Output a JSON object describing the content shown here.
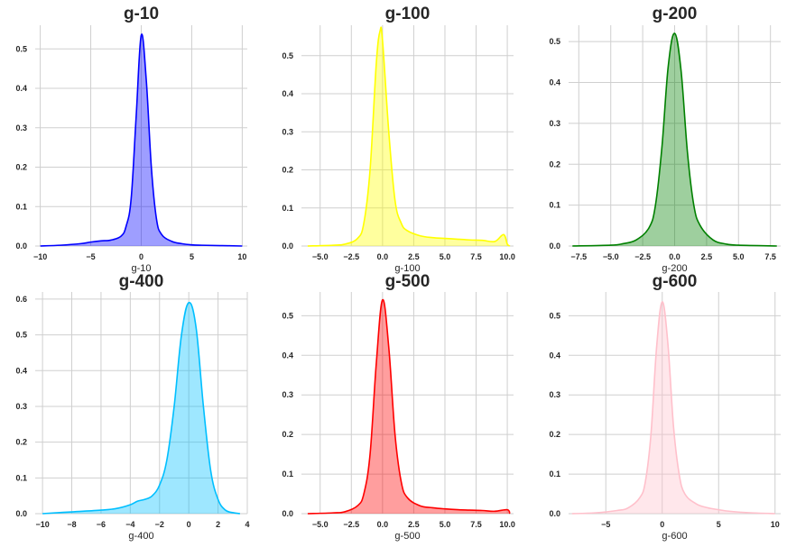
{
  "chart_data": [
    {
      "type": "area",
      "title": "g-10",
      "xlabel": "g-10",
      "ylabel": "",
      "color": "#0000ff",
      "xlim": [
        -10.5,
        10.5
      ],
      "ylim": [
        0,
        0.56
      ],
      "xticks": [
        -10,
        -5,
        0,
        5,
        10
      ],
      "yticks": [
        0.0,
        0.1,
        0.2,
        0.3,
        0.4,
        0.5
      ],
      "ytick_decimals": 1,
      "grid": true,
      "x": [
        -10,
        -8,
        -6,
        -5,
        -4,
        -3,
        -2,
        -1.5,
        -1,
        -0.5,
        0,
        0.5,
        1,
        1.5,
        2,
        3,
        4,
        5,
        6,
        8,
        10
      ],
      "y": [
        0.0,
        0.002,
        0.006,
        0.01,
        0.013,
        0.015,
        0.025,
        0.05,
        0.12,
        0.33,
        0.535,
        0.42,
        0.2,
        0.07,
        0.03,
        0.012,
        0.006,
        0.003,
        0.002,
        0.001,
        0.0
      ]
    },
    {
      "type": "area",
      "title": "g-100",
      "xlabel": "g-100",
      "ylabel": "",
      "color": "#ffff00",
      "xlim": [
        -6.5,
        10.5
      ],
      "ylim": [
        0,
        0.58
      ],
      "xticks": [
        -5.0,
        -2.5,
        0.0,
        2.5,
        5.0,
        7.5,
        10.0
      ],
      "yticks": [
        0.0,
        0.1,
        0.2,
        0.3,
        0.4,
        0.5
      ],
      "ytick_decimals": 1,
      "grid": true,
      "x": [
        -6,
        -4,
        -3,
        -2,
        -1.5,
        -1,
        -0.5,
        -0.2,
        0,
        0.5,
        1,
        1.5,
        2,
        3,
        4,
        5,
        6,
        7,
        8,
        9,
        9.7,
        10,
        10.2
      ],
      "y": [
        0.0,
        0.002,
        0.005,
        0.02,
        0.06,
        0.2,
        0.48,
        0.565,
        0.54,
        0.3,
        0.12,
        0.06,
        0.04,
        0.027,
        0.022,
        0.02,
        0.018,
        0.016,
        0.015,
        0.012,
        0.03,
        0.005,
        0.0
      ]
    },
    {
      "type": "area",
      "title": "g-200",
      "xlabel": "g-200",
      "ylabel": "",
      "color": "#008000",
      "xlim": [
        -8.3,
        8.3
      ],
      "ylim": [
        0,
        0.54
      ],
      "xticks": [
        -7.5,
        -5.0,
        -2.5,
        0.0,
        2.5,
        5.0,
        7.5
      ],
      "yticks": [
        0.0,
        0.1,
        0.2,
        0.3,
        0.4,
        0.5
      ],
      "ytick_decimals": 1,
      "grid": true,
      "x": [
        -8,
        -5,
        -4,
        -3,
        -2,
        -1.5,
        -1,
        -0.5,
        0,
        0.5,
        1,
        1.5,
        2,
        3,
        4,
        5,
        8
      ],
      "y": [
        0.0,
        0.002,
        0.006,
        0.015,
        0.045,
        0.1,
        0.24,
        0.44,
        0.52,
        0.43,
        0.23,
        0.1,
        0.05,
        0.015,
        0.005,
        0.002,
        0.0
      ]
    },
    {
      "type": "area",
      "title": "g-400",
      "xlabel": "g-400",
      "ylabel": "",
      "color": "#00bfff",
      "xlim": [
        -10.5,
        4.0
      ],
      "ylim": [
        0,
        0.62
      ],
      "xticks": [
        -10,
        -8,
        -6,
        -4,
        -2,
        0,
        2,
        4
      ],
      "yticks": [
        0.0,
        0.1,
        0.2,
        0.3,
        0.4,
        0.5,
        0.6
      ],
      "ytick_decimals": 1,
      "grid": true,
      "x": [
        -10,
        -8,
        -6,
        -5,
        -4,
        -3.5,
        -3,
        -2.5,
        -2,
        -1.5,
        -1,
        -0.5,
        0,
        0.5,
        1,
        1.5,
        2,
        2.5,
        3,
        3.5
      ],
      "y": [
        0.0,
        0.005,
        0.01,
        0.014,
        0.025,
        0.035,
        0.04,
        0.05,
        0.08,
        0.15,
        0.3,
        0.5,
        0.59,
        0.52,
        0.3,
        0.12,
        0.04,
        0.01,
        0.003,
        0.0
      ]
    },
    {
      "type": "area",
      "title": "g-500",
      "xlabel": "g-500",
      "ylabel": "",
      "color": "#ff0000",
      "xlim": [
        -6.5,
        10.5
      ],
      "ylim": [
        0,
        0.56
      ],
      "xticks": [
        -5.0,
        -2.5,
        0.0,
        2.5,
        5.0,
        7.5,
        10.0
      ],
      "yticks": [
        0.0,
        0.1,
        0.2,
        0.3,
        0.4,
        0.5
      ],
      "ytick_decimals": 1,
      "grid": true,
      "x": [
        -6,
        -4,
        -3,
        -2,
        -1.5,
        -1,
        -0.5,
        0,
        0.5,
        1,
        1.5,
        2,
        3,
        4,
        5,
        6,
        7,
        8,
        9,
        10,
        10.2
      ],
      "y": [
        0.0,
        0.002,
        0.005,
        0.02,
        0.05,
        0.15,
        0.38,
        0.54,
        0.42,
        0.2,
        0.08,
        0.04,
        0.02,
        0.015,
        0.012,
        0.01,
        0.009,
        0.008,
        0.006,
        0.01,
        0.0
      ]
    },
    {
      "type": "area",
      "title": "g-600",
      "xlabel": "g-600",
      "ylabel": "",
      "color": "#ffc0cb",
      "xlim": [
        -8.3,
        10.5
      ],
      "ylim": [
        0,
        0.56
      ],
      "xticks": [
        -5,
        0,
        5,
        10
      ],
      "yticks": [
        0.0,
        0.1,
        0.2,
        0.3,
        0.4,
        0.5
      ],
      "ytick_decimals": 1,
      "grid": true,
      "x": [
        -8,
        -6,
        -4,
        -3,
        -2,
        -1.5,
        -1,
        -0.5,
        0,
        0.5,
        1,
        1.5,
        2,
        3,
        4,
        5,
        6,
        8,
        10
      ],
      "y": [
        0.0,
        0.002,
        0.008,
        0.015,
        0.04,
        0.08,
        0.2,
        0.42,
        0.535,
        0.43,
        0.22,
        0.1,
        0.05,
        0.025,
        0.015,
        0.01,
        0.006,
        0.002,
        0.0
      ]
    }
  ]
}
